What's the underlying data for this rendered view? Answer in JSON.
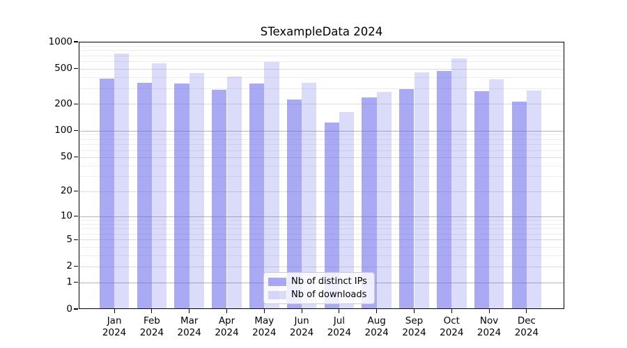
{
  "chart_data": {
    "type": "bar",
    "title": "STexampleData 2024",
    "categories": [
      "Jan",
      "Feb",
      "Mar",
      "Apr",
      "May",
      "Jun",
      "Jul",
      "Aug",
      "Sep",
      "Oct",
      "Nov",
      "Dec"
    ],
    "x_sublabel": "2024",
    "series": [
      {
        "name": "Nb of distinct IPs",
        "color": "#6464eb",
        "opacity": 0.55,
        "values": [
          387,
          346,
          338,
          287,
          340,
          224,
          124,
          235,
          293,
          469,
          279,
          213
        ]
      },
      {
        "name": "Nb of downloads",
        "color": "#6464eb",
        "opacity": 0.23,
        "values": [
          732,
          572,
          446,
          406,
          589,
          344,
          162,
          272,
          450,
          655,
          377,
          284
        ]
      }
    ],
    "yscale": "log1p",
    "ylim": [
      0,
      1000
    ],
    "y_ticks": [
      0,
      1,
      2,
      5,
      10,
      20,
      50,
      100,
      200,
      500,
      1000
    ],
    "y_minor_gridlines": [
      3,
      4,
      6,
      7,
      8,
      9,
      30,
      40,
      60,
      70,
      80,
      90,
      300,
      400,
      600,
      700,
      800,
      900
    ],
    "grid": true,
    "legend_position": "lower center inside",
    "colors": {
      "major_gridline": "#b4b4b4",
      "labeled_gridline": "#dcdcdc",
      "minor_gridline": "#ededed",
      "axis": "#000000",
      "background": "#ffffff"
    }
  }
}
